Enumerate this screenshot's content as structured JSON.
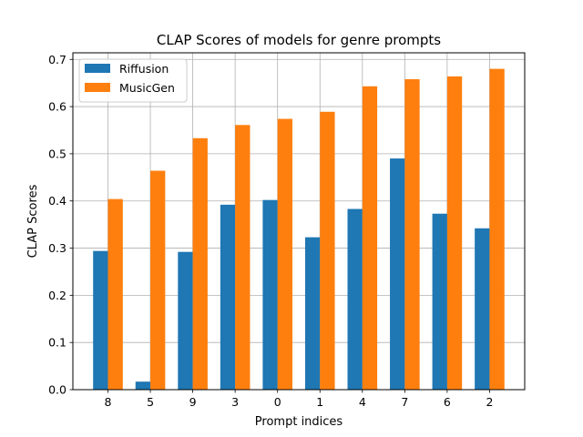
{
  "chart_data": {
    "type": "bar",
    "title": "CLAP Scores of models for genre prompts",
    "xlabel": "Prompt indices",
    "ylabel": "CLAP Scores",
    "categories": [
      "8",
      "5",
      "9",
      "3",
      "0",
      "1",
      "4",
      "7",
      "6",
      "2"
    ],
    "series": [
      {
        "name": "Riffusion",
        "color": "#1f77b4",
        "values": [
          0.294,
          0.017,
          0.292,
          0.392,
          0.402,
          0.323,
          0.383,
          0.49,
          0.373,
          0.342
        ]
      },
      {
        "name": "MusicGen",
        "color": "#ff7f0e",
        "values": [
          0.404,
          0.464,
          0.533,
          0.561,
          0.574,
          0.589,
          0.643,
          0.658,
          0.664,
          0.68
        ]
      }
    ],
    "ylim": [
      0,
      0.714
    ],
    "yticks": [
      "0.0",
      "0.1",
      "0.2",
      "0.3",
      "0.4",
      "0.5",
      "0.6",
      "0.7"
    ],
    "grid": true,
    "legend_position": "top-left"
  }
}
